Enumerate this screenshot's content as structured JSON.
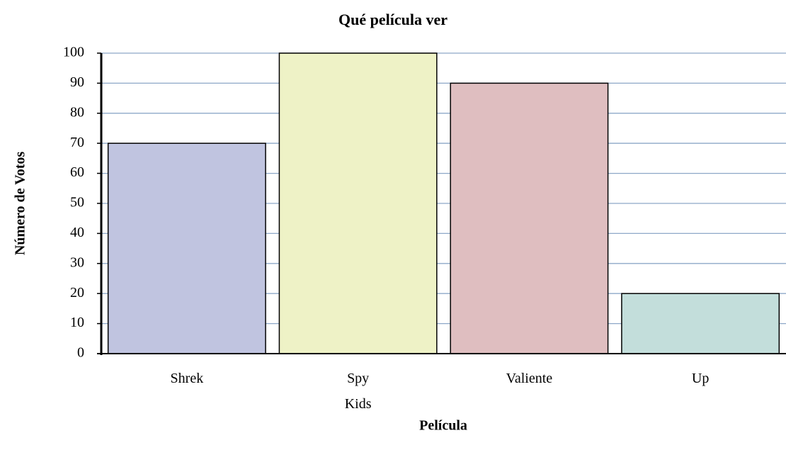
{
  "chart_data": {
    "type": "bar",
    "title": "Qué película ver",
    "x_label": "Película",
    "y_label": "Número de Votos",
    "categories": [
      "Shrek",
      "Spy Kids",
      "Valiente",
      "Up"
    ],
    "values": [
      70,
      100,
      90,
      20
    ],
    "colors": [
      "#c0c4e0",
      "#eef2c6",
      "#dfbec0",
      "#c3dedb"
    ],
    "ylim": [
      0,
      100
    ],
    "yticks": [
      0,
      10,
      20,
      30,
      40,
      50,
      60,
      70,
      80,
      90,
      100
    ],
    "grid": true
  }
}
